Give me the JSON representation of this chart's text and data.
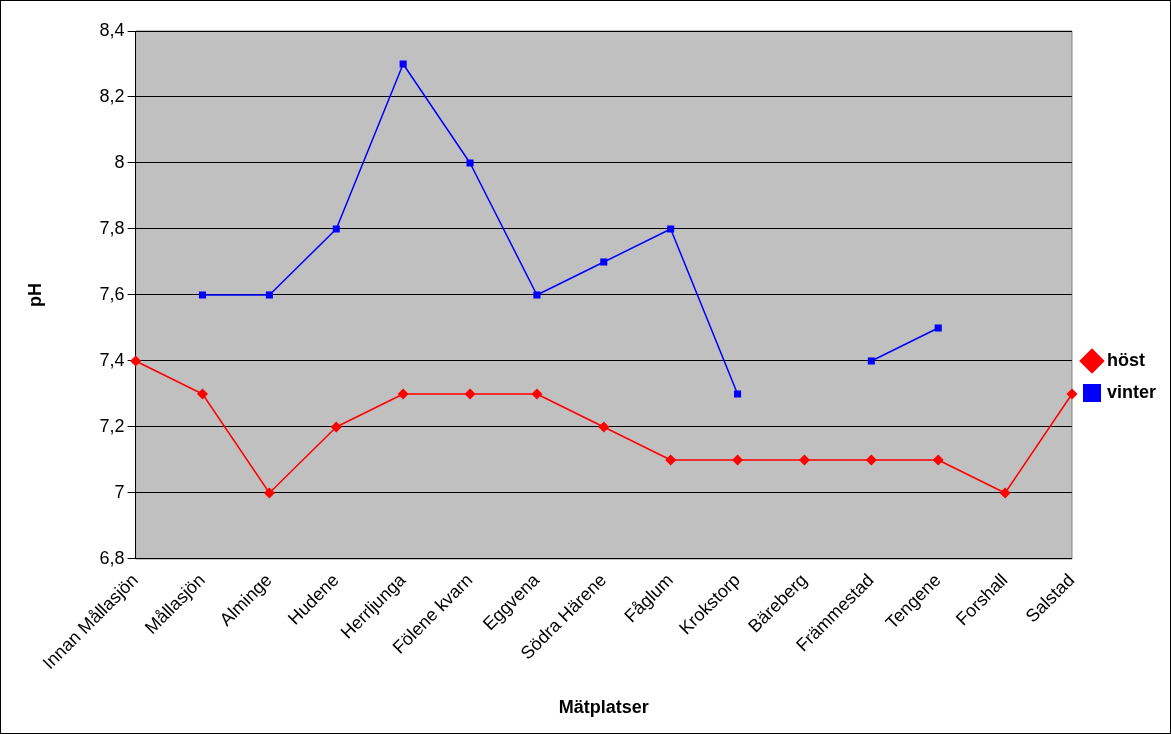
{
  "chart_data": {
    "type": "line",
    "xlabel": "Mätplatser",
    "ylabel": "pH",
    "categories": [
      "Innan Mållasjön",
      "Mållasjön",
      "Alminge",
      "Hudene",
      "Herrljunga",
      "Fölene kvarn",
      "Eggvena",
      "Södra Härene",
      "Fåglum",
      "Krokstorp",
      "Bäreberg",
      "Främmestad",
      "Tengene",
      "Forshall",
      "Salstad"
    ],
    "series": [
      {
        "name": "höst",
        "color": "#ff0000",
        "marker": "diamond",
        "values": [
          7.4,
          7.3,
          7.0,
          7.2,
          7.3,
          7.3,
          7.3,
          7.2,
          7.1,
          7.1,
          7.1,
          7.1,
          7.1,
          7.0,
          7.3
        ]
      },
      {
        "name": "vinter",
        "color": "#0000ff",
        "marker": "square",
        "values": [
          null,
          7.6,
          7.6,
          7.8,
          8.3,
          8.0,
          7.6,
          7.7,
          7.8,
          7.3,
          null,
          7.4,
          7.5,
          null,
          null
        ]
      }
    ],
    "ylim": [
      6.8,
      8.4
    ],
    "yticks": [
      {
        "value": 6.8,
        "label": "6,8"
      },
      {
        "value": 7,
        "label": "7"
      },
      {
        "value": 7.2,
        "label": "7,2"
      },
      {
        "value": 7.4,
        "label": "7,4"
      },
      {
        "value": 7.6,
        "label": "7,6"
      },
      {
        "value": 7.8,
        "label": "7,8"
      },
      {
        "value": 8,
        "label": "8"
      },
      {
        "value": 8.2,
        "label": "8,2"
      },
      {
        "value": 8.4,
        "label": "8,4"
      }
    ],
    "grid": "y",
    "legend": "right"
  }
}
